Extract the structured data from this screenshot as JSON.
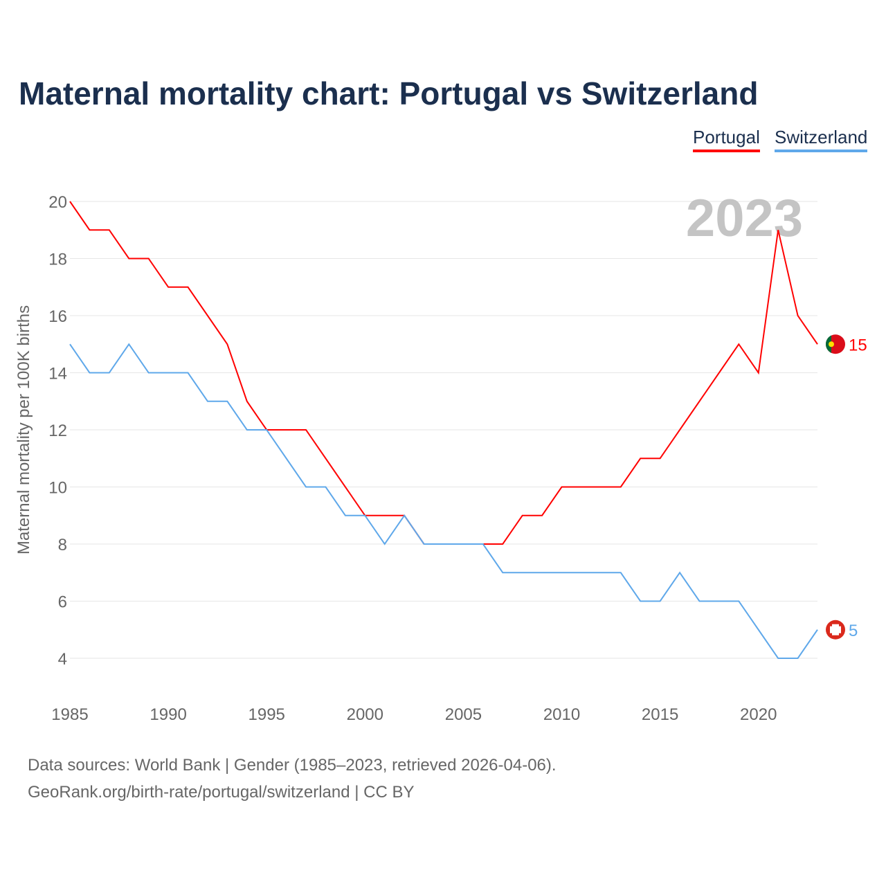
{
  "chart_data": {
    "type": "line",
    "title": "Maternal mortality chart: Portugal vs Switzerland",
    "ylabel": "Maternal mortality per 100K births",
    "xlabel": "",
    "ylim": [
      4,
      20
    ],
    "xlim": [
      1985,
      2023
    ],
    "yticks": [
      4,
      6,
      8,
      10,
      12,
      14,
      16,
      18,
      20
    ],
    "xticks": [
      1985,
      1990,
      1995,
      2000,
      2005,
      2010,
      2015,
      2020
    ],
    "grid": true,
    "legend_placement": "top-right",
    "year_label": "2023",
    "x": [
      1985,
      1986,
      1987,
      1988,
      1989,
      1990,
      1991,
      1992,
      1993,
      1994,
      1995,
      1996,
      1997,
      1998,
      1999,
      2000,
      2001,
      2002,
      2003,
      2004,
      2005,
      2006,
      2007,
      2008,
      2009,
      2010,
      2011,
      2012,
      2013,
      2014,
      2015,
      2016,
      2017,
      2018,
      2019,
      2020,
      2021,
      2022,
      2023
    ],
    "series": [
      {
        "name": "Portugal",
        "color": "#ff0000",
        "end_label": "15",
        "values": [
          20,
          19,
          19,
          18,
          18,
          17,
          17,
          16,
          15,
          13,
          12,
          12,
          12,
          11,
          10,
          9,
          9,
          9,
          8,
          8,
          8,
          8,
          8,
          9,
          9,
          10,
          10,
          10,
          10,
          11,
          11,
          12,
          13,
          14,
          15,
          14,
          19,
          16,
          15
        ]
      },
      {
        "name": "Switzerland",
        "color": "#5fa8ea",
        "end_label": "5",
        "values": [
          15,
          14,
          14,
          15,
          14,
          14,
          14,
          13,
          13,
          12,
          12,
          11,
          10,
          10,
          9,
          9,
          8,
          9,
          8,
          8,
          8,
          8,
          7,
          7,
          7,
          7,
          7,
          7,
          7,
          6,
          6,
          7,
          6,
          6,
          6,
          5,
          4,
          4,
          5
        ]
      }
    ]
  },
  "source_line1": "Data sources: World Bank | Gender (1985–2023, retrieved 2026-04-06).",
  "source_line2": "GeoRank.org/birth-rate/portugal/switzerland | CC BY"
}
